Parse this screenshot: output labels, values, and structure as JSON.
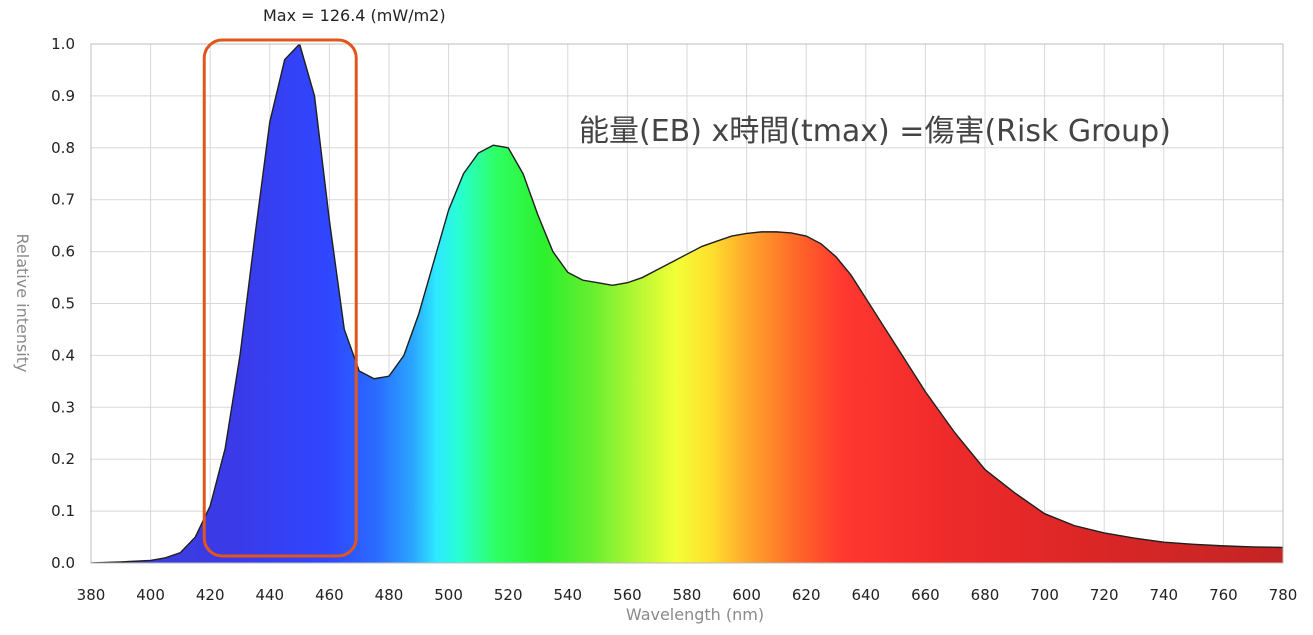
{
  "chart_data": {
    "type": "area",
    "title": "Max = 126.4 (mW/m2)",
    "annotation": "能量(EB) x時間(tmax) =傷害(Risk Group)",
    "xlabel": "Wavelength (nm)",
    "ylabel": "Relative intensity",
    "xlim": [
      380,
      780
    ],
    "ylim": [
      0,
      1.0
    ],
    "x_ticks": [
      380,
      400,
      420,
      440,
      460,
      480,
      500,
      520,
      540,
      560,
      580,
      600,
      620,
      640,
      660,
      680,
      700,
      720,
      740,
      760,
      780
    ],
    "y_ticks": [
      0.0,
      0.1,
      0.2,
      0.3,
      0.4,
      0.5,
      0.6,
      0.7,
      0.8,
      0.9,
      1.0
    ],
    "y_tick_labels": [
      "0.0",
      "0.1",
      "0.2",
      "0.3",
      "0.4",
      "0.5",
      "0.6",
      "0.7",
      "0.8",
      "0.9",
      "1.0"
    ],
    "grid": true,
    "highlight_range": [
      418,
      469
    ],
    "colors": {
      "highlight_box": "#e2551c",
      "curve_stroke": "#1f1f1f",
      "grid": "#d8d8d8",
      "axis_text": "#222222",
      "label_text": "#8a8a8a"
    },
    "x": [
      380,
      390,
      400,
      405,
      410,
      415,
      420,
      425,
      430,
      435,
      440,
      445,
      450,
      455,
      460,
      465,
      470,
      475,
      480,
      485,
      490,
      495,
      500,
      505,
      510,
      515,
      520,
      525,
      530,
      535,
      540,
      545,
      550,
      555,
      560,
      565,
      570,
      575,
      580,
      585,
      590,
      595,
      600,
      605,
      610,
      615,
      620,
      625,
      630,
      635,
      640,
      650,
      660,
      670,
      680,
      690,
      700,
      710,
      720,
      730,
      740,
      750,
      760,
      770,
      780
    ],
    "y": [
      0.0,
      0.002,
      0.005,
      0.01,
      0.02,
      0.05,
      0.11,
      0.22,
      0.4,
      0.63,
      0.85,
      0.97,
      1.0,
      0.9,
      0.66,
      0.45,
      0.37,
      0.355,
      0.36,
      0.4,
      0.48,
      0.58,
      0.68,
      0.75,
      0.79,
      0.805,
      0.8,
      0.75,
      0.67,
      0.6,
      0.56,
      0.545,
      0.54,
      0.535,
      0.54,
      0.55,
      0.565,
      0.58,
      0.595,
      0.61,
      0.62,
      0.63,
      0.635,
      0.638,
      0.638,
      0.636,
      0.63,
      0.615,
      0.59,
      0.555,
      0.51,
      0.42,
      0.33,
      0.25,
      0.18,
      0.135,
      0.095,
      0.072,
      0.058,
      0.048,
      0.04,
      0.036,
      0.033,
      0.031,
      0.03
    ]
  }
}
